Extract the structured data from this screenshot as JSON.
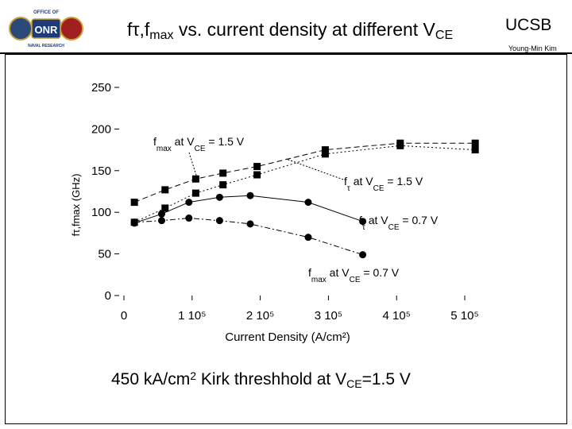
{
  "header": {
    "title_prefix": "fτ,f",
    "title_sub": "max",
    "title_mid": " vs. current density at different V",
    "title_sub2": "CE",
    "org": "UCSB",
    "author": "Young-Min Kim",
    "logo_text": "ONR",
    "logo_top": "OFFICE OF",
    "logo_bottom": "NAVAL RESEARCH"
  },
  "caption": {
    "prefix": "450 kA/cm",
    "sup": "2",
    "mid": " Kirk threshhold at V",
    "sub": "CE",
    "suffix": "=1.5 V"
  },
  "chart_data": {
    "type": "line",
    "xlabel": "Current Density (A/cm²)",
    "ylabel": "fτ,fmax (GHz)",
    "xlim": [
      0,
      500000
    ],
    "ylim": [
      0,
      250
    ],
    "yticks": [
      0,
      50,
      100,
      150,
      200,
      250
    ],
    "xtick_labels": [
      "0",
      "1 10⁵",
      "2 10⁵",
      "3 10⁵",
      "4 10⁵",
      "5 10⁵"
    ],
    "xticks": [
      0,
      100000,
      200000,
      300000,
      400000,
      500000
    ],
    "series": [
      {
        "name": "fmax at VCE = 1.5 V",
        "marker": "square",
        "dash": "dashed",
        "x": [
          20000,
          65000,
          110000,
          150000,
          200000,
          300000,
          410000,
          520000
        ],
        "y": [
          112,
          127,
          140,
          147,
          155,
          175,
          183,
          183
        ]
      },
      {
        "name": "fτ at VCE = 1.5 V",
        "marker": "square",
        "dash": "dotted",
        "x": [
          20000,
          65000,
          110000,
          150000,
          200000,
          300000,
          410000,
          520000
        ],
        "y": [
          88,
          105,
          123,
          133,
          145,
          170,
          180,
          175
        ]
      },
      {
        "name": "fτ at VCE = 0.7 V",
        "marker": "circle",
        "dash": "solid",
        "x": [
          20000,
          60000,
          100000,
          145000,
          190000,
          275000,
          355000
        ],
        "y": [
          87,
          98,
          112,
          118,
          120,
          112,
          89
        ]
      },
      {
        "name": "fmax at VCE = 0.7 V",
        "marker": "circle",
        "dash": "dashdot",
        "x": [
          20000,
          60000,
          100000,
          145000,
          190000,
          275000,
          355000
        ],
        "y": [
          88,
          90,
          93,
          90,
          86,
          70,
          49
        ]
      }
    ],
    "annotations": [
      {
        "main": "f",
        "sub": "max",
        "mid": " at V",
        "sub2": "CE",
        "tail": " = 1.5 V"
      },
      {
        "main": "f",
        "sub": "τ",
        "mid": " at V",
        "sub2": "CE",
        "tail": " = 1.5 V"
      },
      {
        "main": "f",
        "sub": "τ",
        "mid": " at V",
        "sub2": "CE",
        "tail": " = 0.7 V"
      },
      {
        "main": "f",
        "sub": "max",
        "mid": " at V",
        "sub2": "CE",
        "tail": " = 0.7 V"
      }
    ]
  }
}
